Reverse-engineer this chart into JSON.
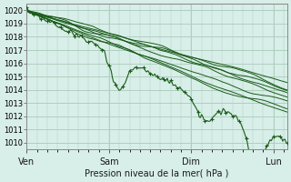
{
  "title": "",
  "xlabel": "Pression niveau de la mer( hPa )",
  "ylabel": "",
  "bg_color": "#d8eee8",
  "grid_color": "#b0cfc0",
  "line_color": "#1a5c1a",
  "marker_color": "#1a5c1a",
  "ylim": [
    1009.5,
    1020.5
  ],
  "yticks": [
    1010,
    1011,
    1012,
    1013,
    1014,
    1015,
    1016,
    1017,
    1018,
    1019,
    1020
  ],
  "day_labels": [
    "Ven",
    "Sam",
    "Dim",
    "Lun"
  ],
  "day_positions": [
    0,
    72,
    144,
    216
  ],
  "xlim": [
    0,
    228
  ],
  "num_points": 229
}
